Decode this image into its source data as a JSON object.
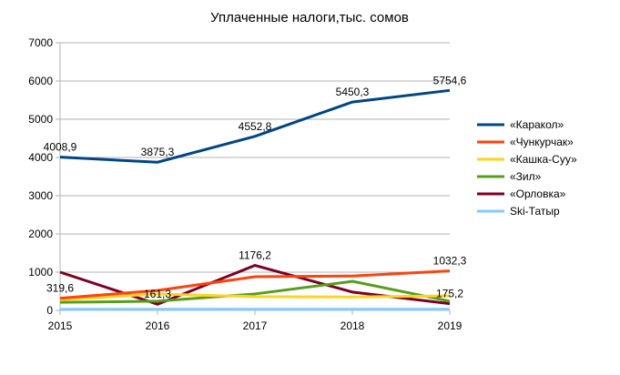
{
  "chart_data": {
    "type": "line",
    "title": "Уплаченные налоги,тыс. сомов",
    "categories": [
      "2015",
      "2016",
      "2017",
      "2018",
      "2019"
    ],
    "ylim": [
      0,
      7000
    ],
    "yticks": [
      "0",
      "1000",
      "2000",
      "3000",
      "4000",
      "5000",
      "6000",
      "7000"
    ],
    "grid": true,
    "legend": "right",
    "series": [
      {
        "name": "«Каракол»",
        "color": "#004586",
        "values": [
          4008.9,
          3875.3,
          4552.8,
          5450.3,
          5754.6
        ],
        "labels": [
          "4008,9",
          "3875,3",
          "4552,8",
          "5450,3",
          "5754,6"
        ]
      },
      {
        "name": "«Чункурчак»",
        "color": "#ff420e",
        "values": [
          319.6,
          520,
          880,
          900,
          1032.3
        ],
        "labels": [
          "319,6",
          null,
          null,
          null,
          "1032,3"
        ]
      },
      {
        "name": "«Кашка-Суу»",
        "color": "#ffd320",
        "values": [
          280,
          430,
          360,
          350,
          380
        ],
        "labels": [
          null,
          null,
          null,
          null,
          null
        ]
      },
      {
        "name": "«Зил»",
        "color": "#579d1c",
        "values": [
          210,
          240,
          430,
          760,
          240
        ],
        "labels": [
          null,
          null,
          null,
          null,
          null
        ]
      },
      {
        "name": "«Орловка»",
        "color": "#7e0021",
        "values": [
          1000,
          161.3,
          1176.2,
          480,
          175.2
        ],
        "labels": [
          null,
          "161,3",
          "1176,2",
          null,
          "175,2"
        ]
      },
      {
        "name": "Ski-Татыр",
        "color": "#83caff",
        "values": [
          30,
          30,
          30,
          30,
          30
        ],
        "labels": [
          null,
          null,
          null,
          null,
          null
        ]
      }
    ]
  }
}
